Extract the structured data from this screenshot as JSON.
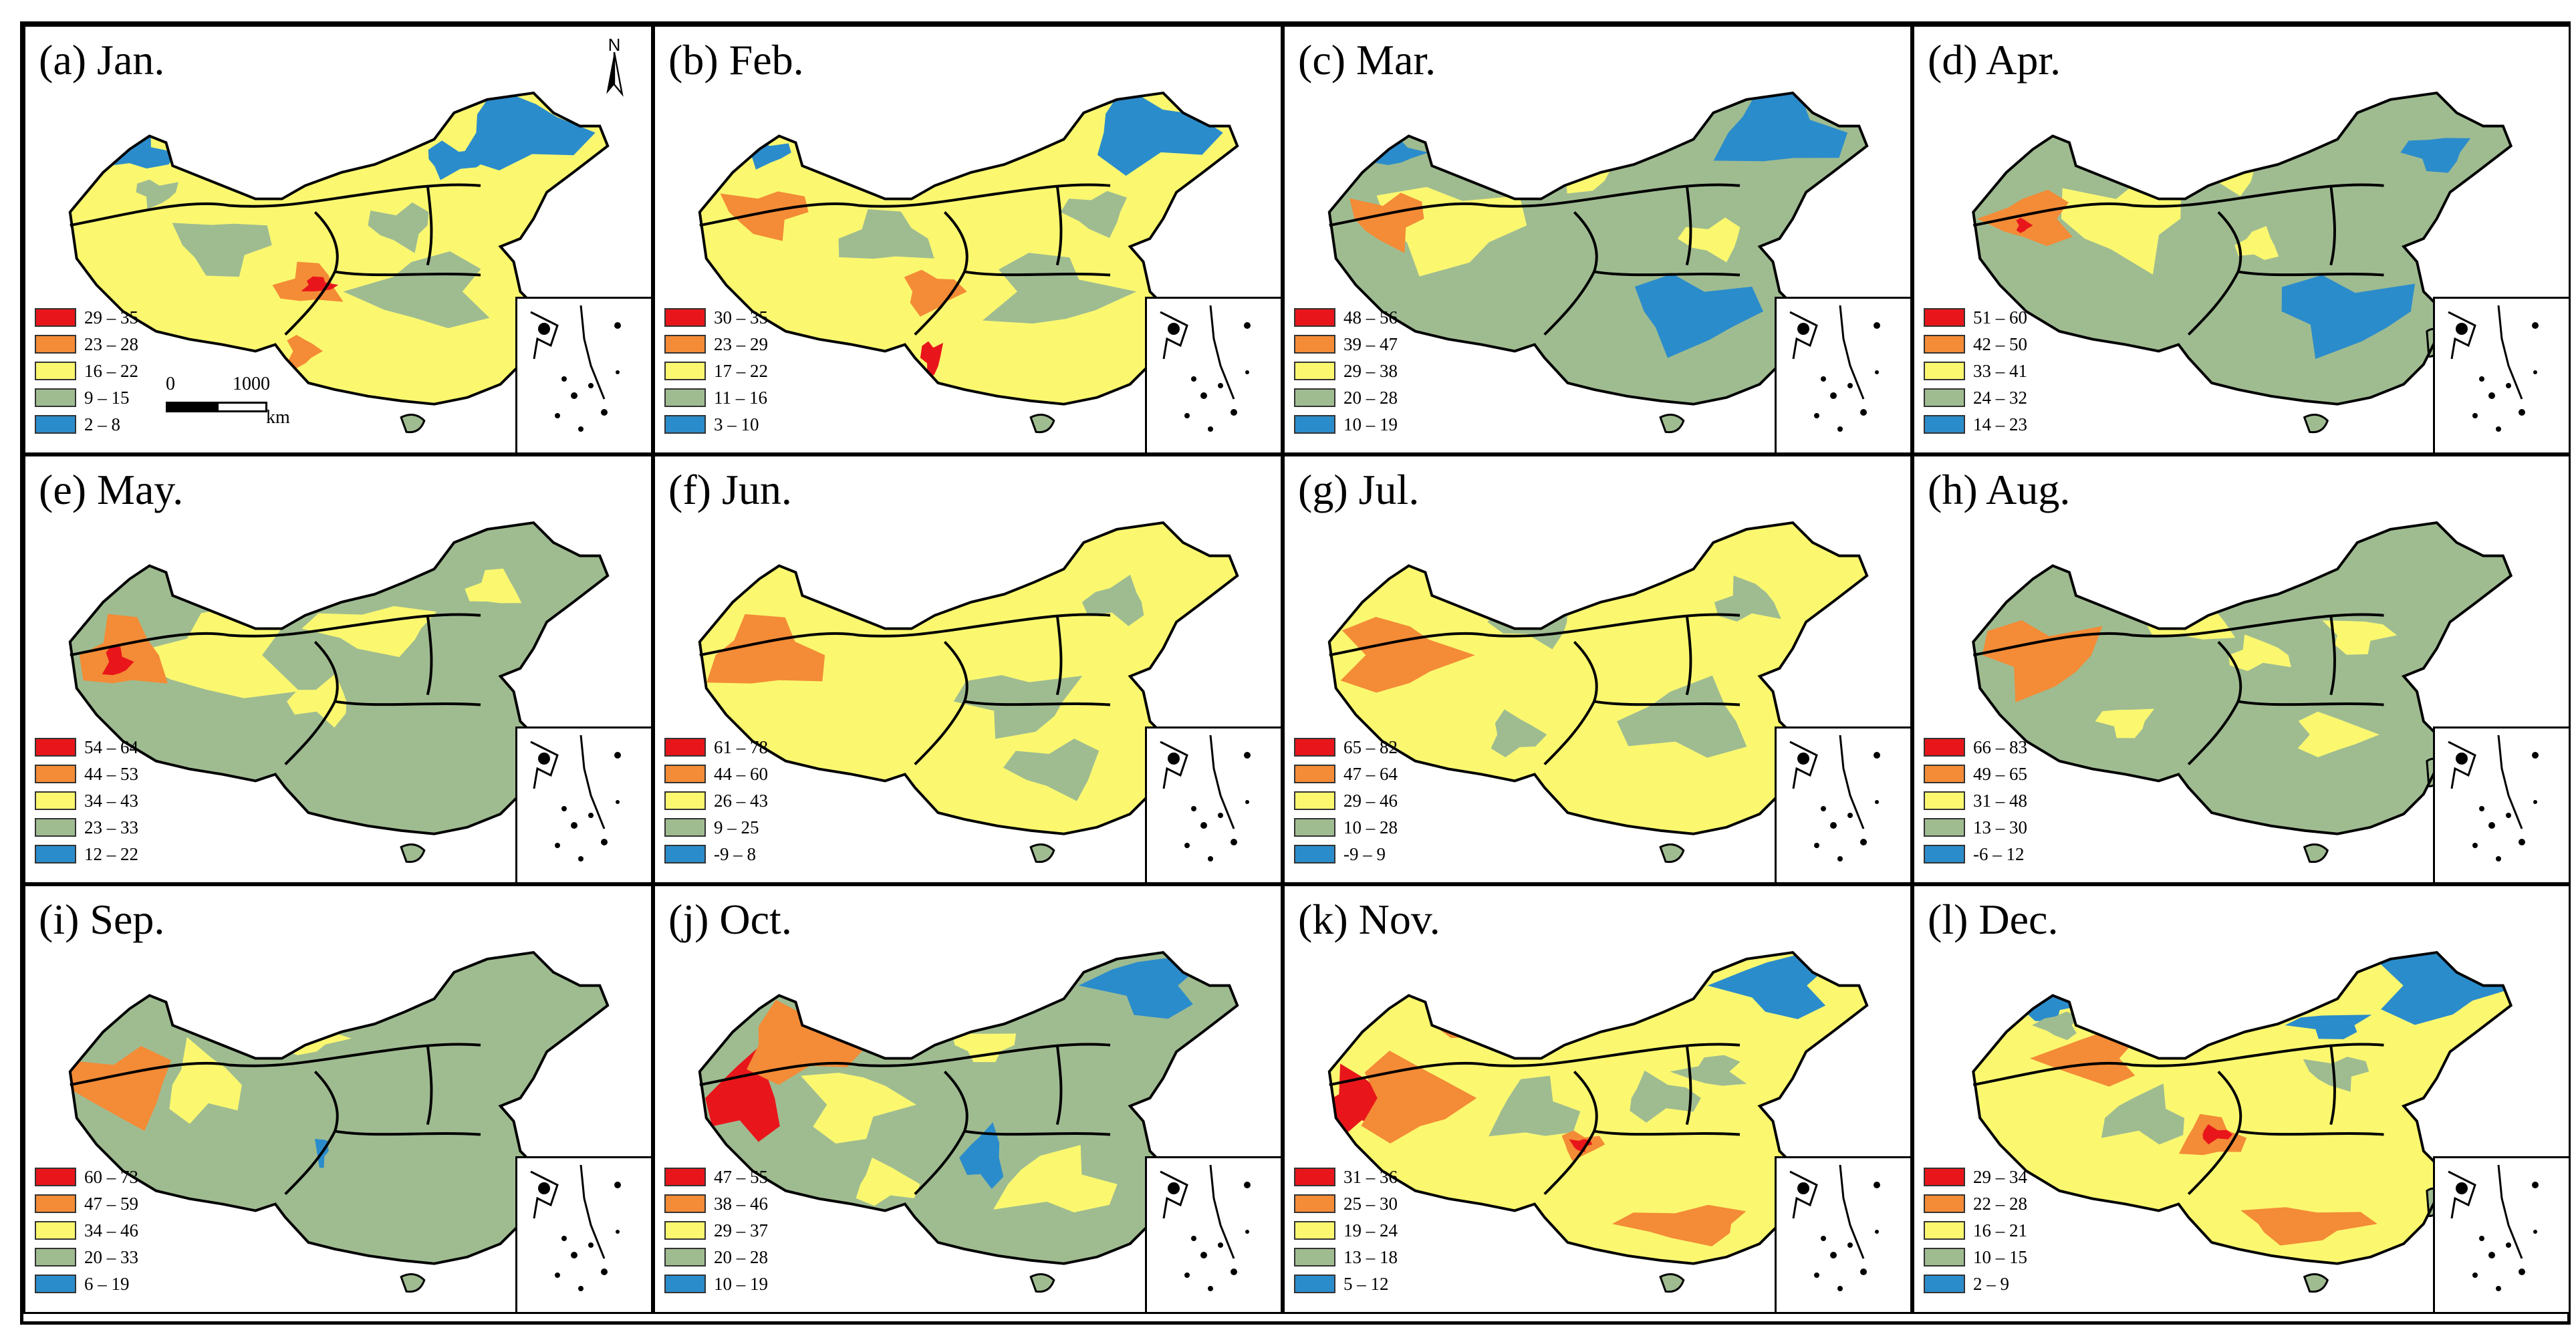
{
  "figure": {
    "colors": [
      "#e8161b",
      "#f48b36",
      "#fbf870",
      "#9fbc91",
      "#2b8ccb"
    ],
    "north_label": "N",
    "scale": {
      "zero": "0",
      "max": "1000",
      "unit": "km"
    }
  },
  "panels": [
    {
      "title": "(a) Jan.",
      "legend": [
        "29 – 35",
        "23 – 28",
        "16 – 22",
        "9 – 15",
        "2 – 8"
      ]
    },
    {
      "title": "(b) Feb.",
      "legend": [
        "30 – 35",
        "23 – 29",
        "17 – 22",
        "11 – 16",
        "3 – 10"
      ]
    },
    {
      "title": "(c) Mar.",
      "legend": [
        "48 – 56",
        "39 – 47",
        "29 – 38",
        "20 – 28",
        "10 – 19"
      ]
    },
    {
      "title": "(d) Apr.",
      "legend": [
        "51 – 60",
        "42 – 50",
        "33 – 41",
        "24 – 32",
        "14 – 23"
      ]
    },
    {
      "title": "(e) May.",
      "legend": [
        "54 – 64",
        "44 – 53",
        "34 – 43",
        "23 – 33",
        "12 – 22"
      ]
    },
    {
      "title": "(f) Jun.",
      "legend": [
        "61 – 78",
        "44 – 60",
        "26 – 43",
        "9 – 25",
        "-9 – 8"
      ]
    },
    {
      "title": "(g) Jul.",
      "legend": [
        "65 – 82",
        "47 – 64",
        "29 – 46",
        "10 – 28",
        "-9 – 9"
      ]
    },
    {
      "title": "(h) Aug.",
      "legend": [
        "66 – 83",
        "49 – 65",
        "31 – 48",
        "13 – 30",
        "-6 – 12"
      ]
    },
    {
      "title": "(i) Sep.",
      "legend": [
        "60 – 73",
        "47 – 59",
        "34 – 46",
        "20 – 33",
        "6 – 19"
      ]
    },
    {
      "title": "(j) Oct.",
      "legend": [
        "47 – 55",
        "38 – 46",
        "29 – 37",
        "20 – 28",
        "10 – 19"
      ]
    },
    {
      "title": "(k) Nov.",
      "legend": [
        "31 – 36",
        "25 – 30",
        "19 – 24",
        "13 – 18",
        "5 – 12"
      ]
    },
    {
      "title": "(l) Dec.",
      "legend": [
        "29 – 34",
        "22 – 28",
        "16 – 21",
        "10 – 15",
        "2 – 9"
      ]
    }
  ]
}
